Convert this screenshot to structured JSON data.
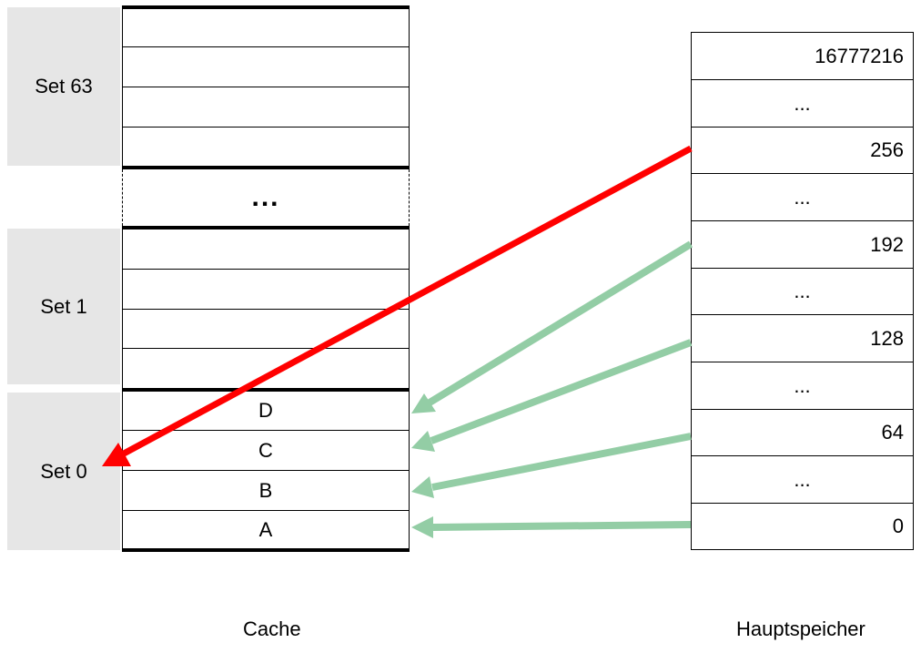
{
  "cache": {
    "sets": [
      {
        "label": "Set 63"
      },
      {
        "label": "Set 1"
      },
      {
        "label": "Set 0"
      }
    ],
    "ellipsis": "...",
    "set0_lines": [
      "D",
      "C",
      "B",
      "A"
    ]
  },
  "memory": {
    "cells": [
      "16777216",
      "...",
      "256",
      "...",
      "192",
      "...",
      "128",
      "...",
      "64",
      "...",
      "0"
    ]
  },
  "captions": {
    "cache": "Cache",
    "memory": "Hauptspeicher"
  },
  "colors": {
    "valid_mapping": "#93cda5",
    "invalid_mapping": "#ff0000",
    "set_background": "#e6e6e6"
  }
}
